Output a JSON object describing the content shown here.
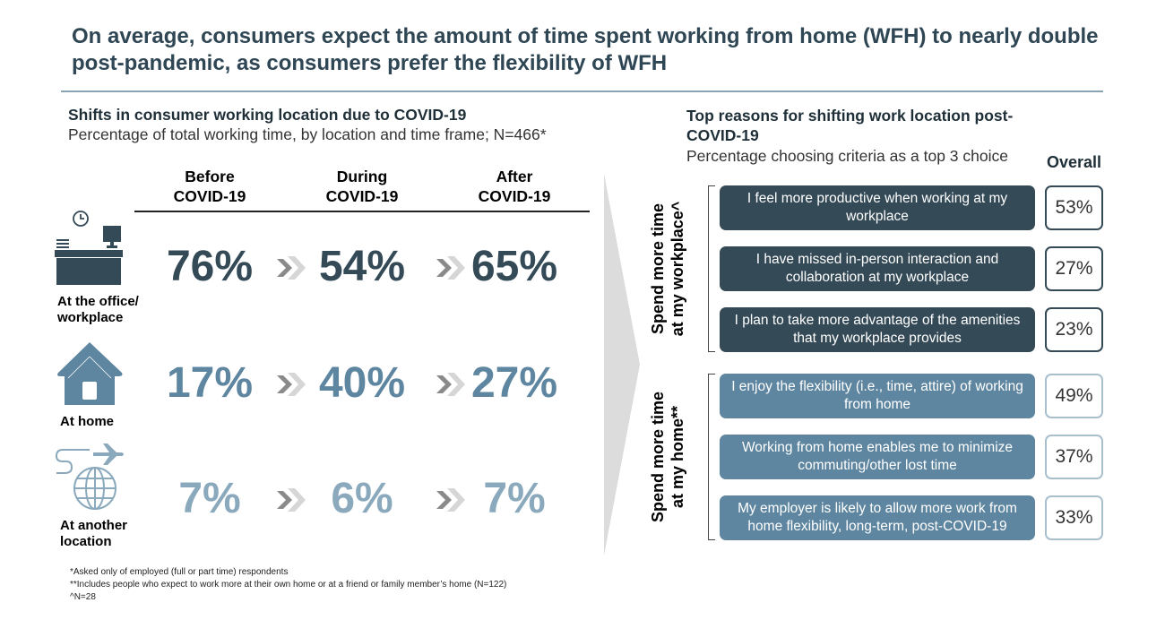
{
  "title": "On average, consumers expect the amount of time spent working from home (WFH) to nearly double post-pandemic, as consumers prefer the flexibility of WFH",
  "colors": {
    "dark": "#344a57",
    "mid": "#5e86a0",
    "light": "#8ba9bd",
    "title": "#2f4654"
  },
  "left": {
    "heading": "Shifts in consumer working location due to COVID-19",
    "subheading": "Percentage of total working time, by location and time frame; N=466*",
    "columns": [
      {
        "l1": "Before",
        "l2": "COVID-19"
      },
      {
        "l1": "During",
        "l2": "COVID-19"
      },
      {
        "l1": "After",
        "l2": "COVID-19"
      }
    ],
    "rows": [
      {
        "label": "At the office/ workplace",
        "icon": "office-desk-icon",
        "values": [
          "76%",
          "54%",
          "65%"
        ]
      },
      {
        "label": "At home",
        "icon": "house-icon",
        "values": [
          "17%",
          "40%",
          "27%"
        ]
      },
      {
        "label": "At another location",
        "icon": "globe-plane-icon",
        "values": [
          "7%",
          "6%",
          "7%"
        ]
      }
    ]
  },
  "right": {
    "heading": "Top reasons for shifting work location post-COVID-19",
    "subheading": "Percentage choosing criteria as a top 3 choice",
    "overall_label": "Overall",
    "groups": [
      {
        "label_l1": "Spend more time",
        "label_l2": "at my workplace^",
        "items": [
          {
            "reason": "I feel more productive when working at my workplace",
            "pct": "53%"
          },
          {
            "reason": "I have missed in-person interaction and collaboration at my workplace",
            "pct": "27%"
          },
          {
            "reason": "I plan to take more advantage of the amenities that my workplace provides",
            "pct": "23%"
          }
        ]
      },
      {
        "label_l1": "Spend more time",
        "label_l2": "at my home**",
        "items": [
          {
            "reason": "I enjoy the flexibility (i.e., time, attire) of working from home",
            "pct": "49%"
          },
          {
            "reason": "Working from home enables me to minimize commuting/other lost time",
            "pct": "37%"
          },
          {
            "reason": "My employer is likely to allow more work from home flexibility, long-term, post-COVID-19",
            "pct": "33%"
          }
        ]
      }
    ]
  },
  "footnotes": [
    "*Asked only of employed (full or part time) respondents",
    "**Includes people who expect to work more at their own home or at a friend or family member’s home (N=122)",
    "^N=28"
  ],
  "chart_data": [
    {
      "type": "table",
      "title": "Shifts in consumer working location due to COVID-19",
      "columns": [
        "Before COVID-19",
        "During COVID-19",
        "After COVID-19"
      ],
      "series": [
        {
          "name": "At the office/ workplace",
          "values": [
            76,
            54,
            65
          ]
        },
        {
          "name": "At home",
          "values": [
            17,
            40,
            27
          ]
        },
        {
          "name": "At another location",
          "values": [
            7,
            6,
            7
          ]
        }
      ]
    },
    {
      "type": "table",
      "title": "Top reasons for shifting work location post-COVID-19",
      "categories": [
        "I feel more productive when working at my workplace",
        "I have missed in-person interaction and collaboration at my workplace",
        "I plan to take more advantage of the amenities that my workplace provides",
        "I enjoy the flexibility (i.e., time, attire) of working from home",
        "Working from home enables me to minimize commuting/other lost time",
        "My employer is likely to allow more work from home flexibility, long-term, post-COVID-19"
      ],
      "values": [
        53,
        27,
        23,
        49,
        37,
        33
      ]
    }
  ]
}
